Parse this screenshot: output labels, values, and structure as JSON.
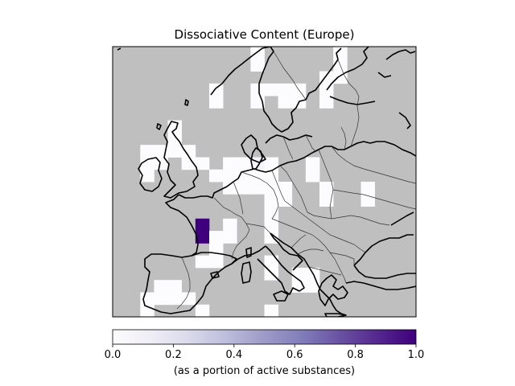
{
  "title": "Dissociative Content (Europe)",
  "colors": {
    "land": "#bfbfbf",
    "coastline": "#000000",
    "border": "#333333",
    "colormap": [
      "#fcfbfd",
      "#efedf5",
      "#dadaeb",
      "#bcbddc",
      "#9e9ac8",
      "#807dba",
      "#6a51a3",
      "#54278f",
      "#3f007d"
    ]
  },
  "colorbar": {
    "label": "(as a portion of active substances)",
    "ticks": [
      "0.0",
      "0.2",
      "0.4",
      "0.6",
      "0.8",
      "1.0"
    ],
    "range": [
      0.0,
      1.0
    ]
  },
  "grid": {
    "columns": 22,
    "rows": 20
  },
  "cells": [
    {
      "col": 10,
      "row": 0,
      "value": 0.0
    },
    {
      "col": 16,
      "row": 0,
      "value": 0.0
    },
    {
      "col": 10,
      "row": 1,
      "value": 0.0
    },
    {
      "col": 16,
      "row": 1,
      "value": 0.0
    },
    {
      "col": 15,
      "row": 2,
      "value": 0.0
    },
    {
      "col": 16,
      "row": 2,
      "value": 0.0
    },
    {
      "col": 15,
      "row": 3,
      "value": 0.0
    },
    {
      "col": 7,
      "row": 3,
      "value": 0.0
    },
    {
      "col": 10,
      "row": 3,
      "value": 0.0
    },
    {
      "col": 11,
      "row": 3,
      "value": 0.0
    },
    {
      "col": 12,
      "row": 3,
      "value": 0.0
    },
    {
      "col": 13,
      "row": 3,
      "value": 0.0
    },
    {
      "col": 7,
      "row": 4,
      "value": 0.0
    },
    {
      "col": 10,
      "row": 4,
      "value": 0.0
    },
    {
      "col": 12,
      "row": 4,
      "value": 0.0
    },
    {
      "col": 13,
      "row": 4,
      "value": 0.0
    },
    {
      "col": 15,
      "row": 4,
      "value": 0.0
    },
    {
      "col": 4,
      "row": 6,
      "value": 0.0
    },
    {
      "col": 4,
      "row": 7,
      "value": 0.0
    },
    {
      "col": 2,
      "row": 8,
      "value": 0.0
    },
    {
      "col": 3,
      "row": 8,
      "value": 0.0
    },
    {
      "col": 4,
      "row": 8,
      "value": 0.0
    },
    {
      "col": 5,
      "row": 8,
      "value": 0.0
    },
    {
      "col": 2,
      "row": 9,
      "value": 0.0
    },
    {
      "col": 3,
      "row": 9,
      "value": 0.0
    },
    {
      "col": 5,
      "row": 9,
      "value": 0.0
    },
    {
      "col": 6,
      "row": 9,
      "value": 0.0
    },
    {
      "col": 8,
      "row": 9,
      "value": 0.0
    },
    {
      "col": 9,
      "row": 9,
      "value": 0.0
    },
    {
      "col": 10,
      "row": 9,
      "value": 0.05
    },
    {
      "col": 11,
      "row": 9,
      "value": 0.0
    },
    {
      "col": 14,
      "row": 9,
      "value": 0.0
    },
    {
      "col": 2,
      "row": 10,
      "value": 0.0
    },
    {
      "col": 7,
      "row": 10,
      "value": 0.0
    },
    {
      "col": 8,
      "row": 10,
      "value": 0.0
    },
    {
      "col": 9,
      "row": 10,
      "value": 0.0
    },
    {
      "col": 10,
      "row": 10,
      "value": 0.0
    },
    {
      "col": 11,
      "row": 10,
      "value": 0.0
    },
    {
      "col": 14,
      "row": 10,
      "value": 0.0
    },
    {
      "col": 8,
      "row": 11,
      "value": 0.0
    },
    {
      "col": 9,
      "row": 11,
      "value": 0.0
    },
    {
      "col": 10,
      "row": 11,
      "value": 0.0
    },
    {
      "col": 11,
      "row": 11,
      "value": 0.0
    },
    {
      "col": 12,
      "row": 11,
      "value": 0.0
    },
    {
      "col": 15,
      "row": 11,
      "value": 0.0
    },
    {
      "col": 18,
      "row": 11,
      "value": 0.0
    },
    {
      "col": 15,
      "row": 12,
      "value": 0.0
    },
    {
      "col": 18,
      "row": 12,
      "value": 0.0
    },
    {
      "col": 11,
      "row": 12,
      "value": 0.0
    },
    {
      "col": 12,
      "row": 12,
      "value": 0.0
    },
    {
      "col": 11,
      "row": 13,
      "value": 0.0
    },
    {
      "col": 6,
      "row": 14,
      "value": 1.0
    },
    {
      "col": 8,
      "row": 14,
      "value": 0.0
    },
    {
      "col": 11,
      "row": 14,
      "value": 0.0
    },
    {
      "col": 6,
      "row": 15,
      "value": 1.0
    },
    {
      "col": 7,
      "row": 15,
      "value": 0.0
    },
    {
      "col": 8,
      "row": 15,
      "value": 0.0
    },
    {
      "col": 11,
      "row": 15,
      "value": 0.0
    },
    {
      "col": 7,
      "row": 16,
      "value": 0.0
    },
    {
      "col": 6,
      "row": 17,
      "value": 0.0
    },
    {
      "col": 7,
      "row": 17,
      "value": 0.0
    },
    {
      "col": 11,
      "row": 17,
      "value": 0.0
    },
    {
      "col": 11,
      "row": 18,
      "value": 0.0
    },
    {
      "col": 13,
      "row": 18,
      "value": 0.0
    },
    {
      "col": 14,
      "row": 18,
      "value": 0.0
    },
    {
      "col": 3,
      "row": 19,
      "value": 0.0
    },
    {
      "col": 4,
      "row": 19,
      "value": 0.0
    },
    {
      "col": 13,
      "row": 19,
      "value": 0.0
    },
    {
      "col": 14,
      "row": 19,
      "value": 0.0
    }
  ],
  "extra_cells": [
    {
      "col": 2,
      "row": 20,
      "value": 0.0
    },
    {
      "col": 3,
      "row": 20,
      "value": 0.0
    },
    {
      "col": 4,
      "row": 20,
      "value": 0.0
    },
    {
      "col": 5,
      "row": 20,
      "value": 0.0
    },
    {
      "col": 2,
      "row": 21,
      "value": 0.0
    },
    {
      "col": 6,
      "row": 21,
      "value": 0.0
    },
    {
      "col": 1,
      "row": 22,
      "value": 0.0
    },
    {
      "col": 6,
      "row": 22,
      "value": 0.0
    },
    {
      "col": 11,
      "row": 21,
      "value": 0.0
    }
  ]
}
